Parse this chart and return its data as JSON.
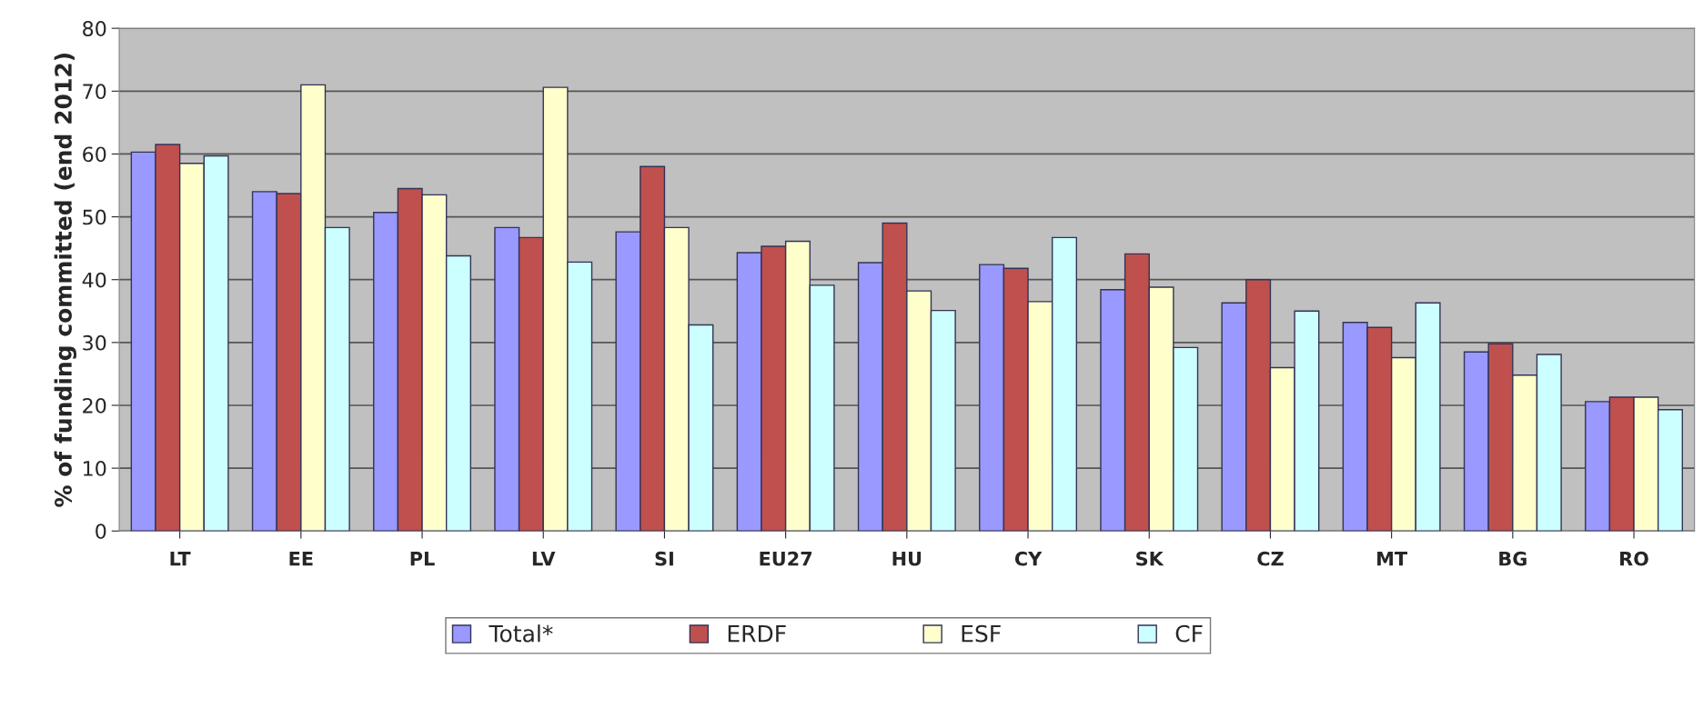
{
  "chart_data": {
    "type": "bar",
    "ylabel": "% of funding committed (end 2012)",
    "categories": [
      "LT",
      "EE",
      "PL",
      "LV",
      "SI",
      "EU27",
      "HU",
      "CY",
      "SK",
      "CZ",
      "MT",
      "BG",
      "RO"
    ],
    "series": [
      {
        "name": "Total*",
        "color": "#9999ff",
        "values": [
          60.3,
          54,
          50.7,
          48.3,
          47.6,
          44.3,
          42.7,
          42.4,
          38.4,
          36.3,
          33.2,
          28.5,
          20.6
        ]
      },
      {
        "name": "ERDF",
        "color": "#c0504d",
        "values": [
          61.5,
          53.7,
          54.5,
          46.7,
          58,
          45.3,
          49,
          41.8,
          44.1,
          40,
          32.4,
          29.8,
          21.3
        ]
      },
      {
        "name": "ESF",
        "color": "#ffffcc",
        "values": [
          58.5,
          71,
          53.5,
          70.6,
          48.3,
          46.1,
          38.2,
          36.5,
          38.8,
          26,
          27.6,
          24.8,
          21.3
        ]
      },
      {
        "name": "CF",
        "color": "#ccffff",
        "values": [
          59.7,
          48.3,
          43.8,
          42.8,
          32.8,
          39.1,
          35.1,
          46.7,
          29.2,
          35,
          36.3,
          28.1,
          19.3
        ]
      }
    ],
    "ylim": [
      0,
      80
    ],
    "yticks": [
      0,
      10,
      20,
      30,
      40,
      50,
      60,
      70,
      80
    ],
    "grid": "y",
    "legend": "bottom"
  }
}
